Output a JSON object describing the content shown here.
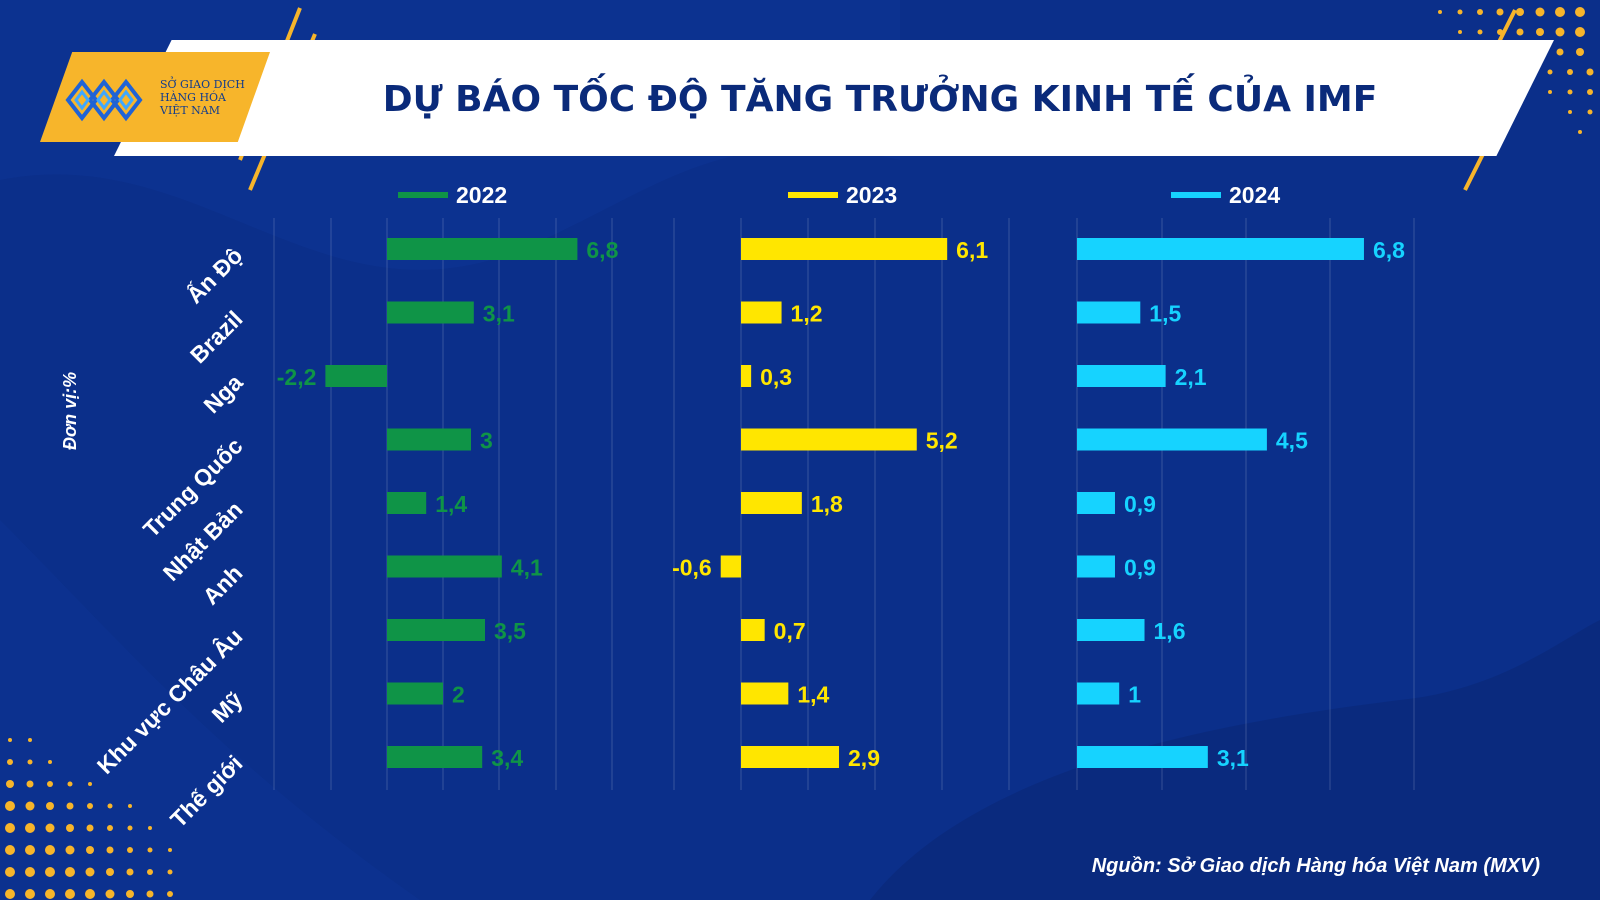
{
  "header": {
    "title": "DỰ BÁO TỐC ĐỘ TĂNG TRƯỞNG KINH TẾ CỦA IMF",
    "logo_lines": [
      "SỞ GIAO DỊCH",
      "HÀNG HÓA",
      "VIỆT NAM"
    ]
  },
  "unit_label": "Đơn vị:%",
  "source": "Nguồn: Sở Giao dịch Hàng hóa Việt Nam (MXV)",
  "colors": {
    "background": "#0b2f8a",
    "series_2022": "#0f9447",
    "series_2023": "#ffe600",
    "series_2024": "#16d3ff",
    "accent": "#f7b52b"
  },
  "chart_data": {
    "type": "bar",
    "orientation": "horizontal",
    "grid": true,
    "legend_position": "top",
    "categories": [
      "Ấn Độ",
      "Brazil",
      "Nga",
      "Trung Quốc",
      "Nhật Bản",
      "Anh",
      "Khu vực Châu Âu",
      "Mỹ",
      "Thế giới"
    ],
    "series": [
      {
        "name": "2022",
        "color": "#0f9447",
        "values": [
          6.8,
          3.1,
          -2.2,
          3,
          1.4,
          4.1,
          3.5,
          2,
          3.4
        ],
        "labels": [
          "6,8",
          "3,1",
          "-2,2",
          "3",
          "1,4",
          "4,1",
          "3,5",
          "2",
          "3,4"
        ]
      },
      {
        "name": "2023",
        "color": "#ffe600",
        "values": [
          6.1,
          1.2,
          0.3,
          5.2,
          1.8,
          -0.6,
          0.7,
          1.4,
          2.9
        ],
        "labels": [
          "6,1",
          "1,2",
          "0,3",
          "5,2",
          "1,8",
          "-0,6",
          "0,7",
          "1,4",
          "2,9"
        ]
      },
      {
        "name": "2024",
        "color": "#16d3ff",
        "values": [
          6.8,
          1.5,
          2.1,
          4.5,
          0.9,
          0.9,
          1.6,
          1,
          3.1
        ],
        "labels": [
          "6,8",
          "1,5",
          "2,1",
          "4,5",
          "0,9",
          "0,9",
          "1,6",
          "1",
          "3,1"
        ]
      }
    ]
  }
}
